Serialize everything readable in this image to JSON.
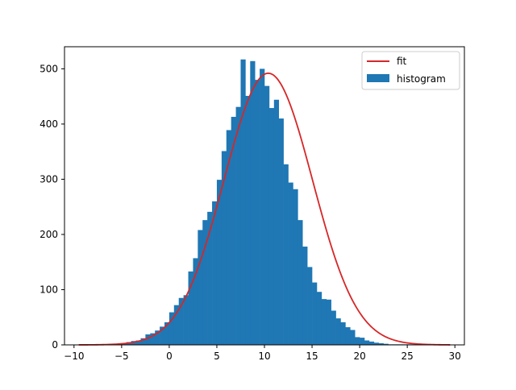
{
  "chart_data": {
    "type": "bar",
    "title": "",
    "xlabel": "",
    "ylabel": "",
    "xlim": [
      -11.0,
      31.0
    ],
    "ylim": [
      0,
      540
    ],
    "x_ticks": [
      -10,
      -5,
      0,
      5,
      10,
      15,
      20,
      25,
      30
    ],
    "y_ticks": [
      0,
      100,
      200,
      300,
      400,
      500
    ],
    "grid": false,
    "legend_placement": "top-right",
    "legend": [
      "fit",
      "histogram"
    ],
    "colors": {
      "histogram": "#1f77b4",
      "fit": "#d62728"
    },
    "histogram": {
      "name": "histogram",
      "bin_start": -9.5,
      "bin_width": 0.5,
      "counts": [
        0,
        0,
        0,
        0,
        0,
        0,
        0,
        0,
        2,
        3,
        5,
        7,
        8,
        12,
        19,
        21,
        26,
        33,
        41,
        59,
        72,
        85,
        90,
        133,
        157,
        208,
        226,
        241,
        260,
        299,
        351,
        389,
        413,
        431,
        517,
        451,
        514,
        480,
        500,
        469,
        429,
        444,
        410,
        327,
        294,
        282,
        226,
        178,
        141,
        113,
        96,
        83,
        82,
        62,
        48,
        41,
        32,
        27,
        14,
        13,
        8,
        6,
        4,
        3,
        2,
        1,
        1,
        1,
        1,
        1,
        1,
        1,
        1,
        1,
        1,
        1,
        1
      ]
    },
    "fit": {
      "name": "fit",
      "kind": "gaussian",
      "mean": 10.4,
      "sigma": 4.65,
      "peak": 492,
      "x_range": [
        -9.5,
        29.5
      ]
    }
  }
}
